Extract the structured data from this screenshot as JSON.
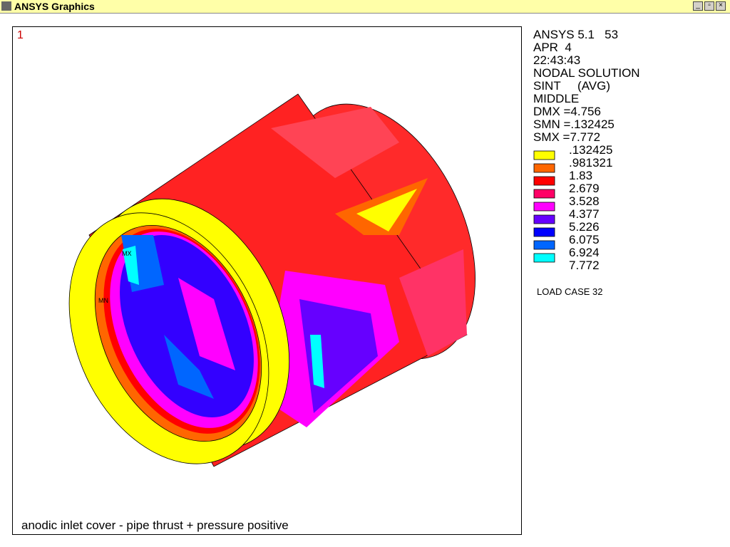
{
  "window": {
    "title": "ANSYS Graphics"
  },
  "viewport": {
    "number": "1",
    "info": [
      "ANSYS 5.1   53",
      "APR  4",
      "22:43:43",
      "NODAL SOLUTION",
      "SINT     (AVG)",
      "MIDDLE",
      "DMX =4.756",
      "SMN =.132425",
      "SMX =7.772"
    ],
    "legend": [
      {
        "label": ".132425",
        "color": "#ffff00"
      },
      {
        "label": ".981321",
        "color": "#ff6600"
      },
      {
        "label": "1.83",
        "color": "#ff0000"
      },
      {
        "label": "2.679",
        "color": "#ff0066"
      },
      {
        "label": "3.528",
        "color": "#ff00ff"
      },
      {
        "label": "4.377",
        "color": "#6600ff"
      },
      {
        "label": "5.226",
        "color": "#0000ff"
      },
      {
        "label": "6.075",
        "color": "#0066ff"
      },
      {
        "label": "6.924",
        "color": "#00ffff"
      },
      {
        "label": "7.772",
        "color": "#ffffff"
      }
    ],
    "load_case": "LOAD CASE 32",
    "markers": [
      "MX",
      "MN"
    ],
    "caption": "anodic inlet cover - pipe thrust + pressure positive"
  }
}
